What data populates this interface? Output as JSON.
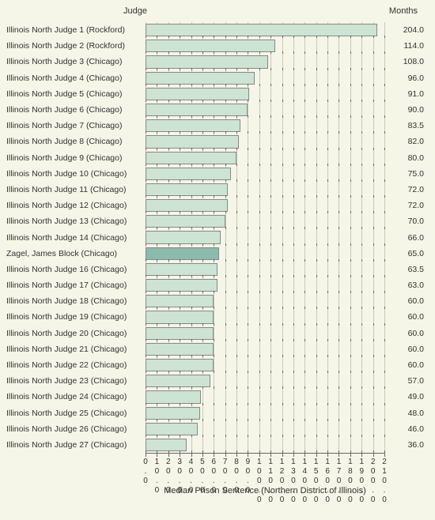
{
  "chart": {
    "type": "bar",
    "orientation": "horizontal",
    "background_color": "#f5f5e8",
    "grid_color": "#cccab0",
    "bar_color": "#cde3d4",
    "highlight_bar_color": "#8abcad",
    "bar_border_color": "#888888",
    "text_color": "#333333",
    "header_judge": "Judge",
    "header_months": "Months",
    "xaxis_title": "Median Prison Sentence (Northern District of Illinois)",
    "xlim": [
      0,
      210
    ],
    "xtick_step": 10,
    "xticks": [
      "0.0",
      "10.0",
      "20.0",
      "30.0",
      "40.0",
      "50.0",
      "60.0",
      "70.0",
      "80.0",
      "90.0",
      "100.0",
      "110.0",
      "120.0",
      "130.0",
      "140.0",
      "150.0",
      "160.0",
      "170.0",
      "180.0",
      "190.0",
      "200.0",
      "210.0"
    ],
    "rows": [
      {
        "label": "Illinois North Judge 1 (Rockford)",
        "value": 204.0,
        "display": "204.0",
        "highlight": false
      },
      {
        "label": "Illinois North Judge 2 (Rockford)",
        "value": 114.0,
        "display": "114.0",
        "highlight": false
      },
      {
        "label": "Illinois North Judge 3 (Chicago)",
        "value": 108.0,
        "display": "108.0",
        "highlight": false
      },
      {
        "label": "Illinois North Judge 4 (Chicago)",
        "value": 96.0,
        "display": "96.0",
        "highlight": false
      },
      {
        "label": "Illinois North Judge 5 (Chicago)",
        "value": 91.0,
        "display": "91.0",
        "highlight": false
      },
      {
        "label": "Illinois North Judge 6 (Chicago)",
        "value": 90.0,
        "display": "90.0",
        "highlight": false
      },
      {
        "label": "Illinois North Judge 7 (Chicago)",
        "value": 83.5,
        "display": "83.5",
        "highlight": false
      },
      {
        "label": "Illinois North Judge 8 (Chicago)",
        "value": 82.0,
        "display": "82.0",
        "highlight": false
      },
      {
        "label": "Illinois North Judge 9 (Chicago)",
        "value": 80.0,
        "display": "80.0",
        "highlight": false
      },
      {
        "label": "Illinois North Judge 10 (Chicago)",
        "value": 75.0,
        "display": "75.0",
        "highlight": false
      },
      {
        "label": "Illinois North Judge 11 (Chicago)",
        "value": 72.0,
        "display": "72.0",
        "highlight": false
      },
      {
        "label": "Illinois North Judge 12 (Chicago)",
        "value": 72.0,
        "display": "72.0",
        "highlight": false
      },
      {
        "label": "Illinois North Judge 13 (Chicago)",
        "value": 70.0,
        "display": "70.0",
        "highlight": false
      },
      {
        "label": "Illinois North Judge 14 (Chicago)",
        "value": 66.0,
        "display": "66.0",
        "highlight": false
      },
      {
        "label": "Zagel, James Block (Chicago)",
        "value": 65.0,
        "display": "65.0",
        "highlight": true
      },
      {
        "label": "Illinois North Judge 16 (Chicago)",
        "value": 63.5,
        "display": "63.5",
        "highlight": false
      },
      {
        "label": "Illinois North Judge 17 (Chicago)",
        "value": 63.0,
        "display": "63.0",
        "highlight": false
      },
      {
        "label": "Illinois North Judge 18 (Chicago)",
        "value": 60.0,
        "display": "60.0",
        "highlight": false
      },
      {
        "label": "Illinois North Judge 19 (Chicago)",
        "value": 60.0,
        "display": "60.0",
        "highlight": false
      },
      {
        "label": "Illinois North Judge 20 (Chicago)",
        "value": 60.0,
        "display": "60.0",
        "highlight": false
      },
      {
        "label": "Illinois North Judge 21 (Chicago)",
        "value": 60.0,
        "display": "60.0",
        "highlight": false
      },
      {
        "label": "Illinois North Judge 22 (Chicago)",
        "value": 60.0,
        "display": "60.0",
        "highlight": false
      },
      {
        "label": "Illinois North Judge 23 (Chicago)",
        "value": 57.0,
        "display": "57.0",
        "highlight": false
      },
      {
        "label": "Illinois North Judge 24 (Chicago)",
        "value": 49.0,
        "display": "49.0",
        "highlight": false
      },
      {
        "label": "Illinois North Judge 25 (Chicago)",
        "value": 48.0,
        "display": "48.0",
        "highlight": false
      },
      {
        "label": "Illinois North Judge 26 (Chicago)",
        "value": 46.0,
        "display": "46.0",
        "highlight": false
      },
      {
        "label": "Illinois North Judge 27 (Chicago)",
        "value": 36.0,
        "display": "36.0",
        "highlight": false
      }
    ]
  }
}
